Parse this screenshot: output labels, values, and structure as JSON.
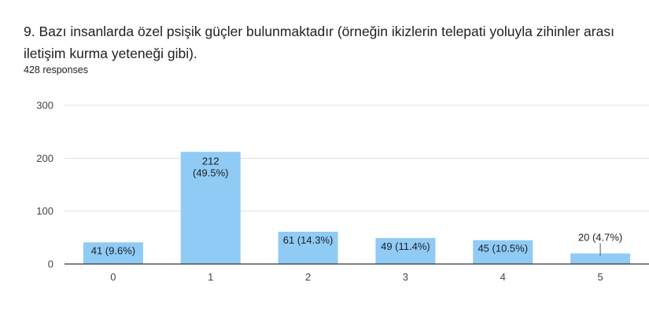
{
  "question": {
    "title": "9. Bazı insanlarda özel psişik güçler bulunmaktadır (örneğin ikizlerin telepati yoluyla zihinler arası iletişim kurma yeteneği gibi).",
    "responses": "428 responses"
  },
  "colors": {
    "bar": "#8fcbf5",
    "grid": "#e0e0e0",
    "axis": "#333333"
  },
  "chart_data": {
    "type": "bar",
    "title": "9. Bazı insanlarda özel psişik güçler bulunmaktadır (örneğin ikizlerin telepati yoluyla zihinler arası iletişim kurma yeteneği gibi).",
    "xlabel": "",
    "ylabel": "",
    "categories": [
      "0",
      "1",
      "2",
      "3",
      "4",
      "5"
    ],
    "values": [
      41,
      212,
      61,
      49,
      45,
      20
    ],
    "data_labels": [
      "41 (9.6%)",
      "212 (49.5%)",
      "61 (14.3%)",
      "49 (11.4%)",
      "45 (10.5%)",
      "20 (4.7%)"
    ],
    "ylim": [
      0,
      300
    ],
    "yticks": [
      0,
      100,
      200,
      300
    ],
    "grid": true,
    "legend": "none"
  }
}
